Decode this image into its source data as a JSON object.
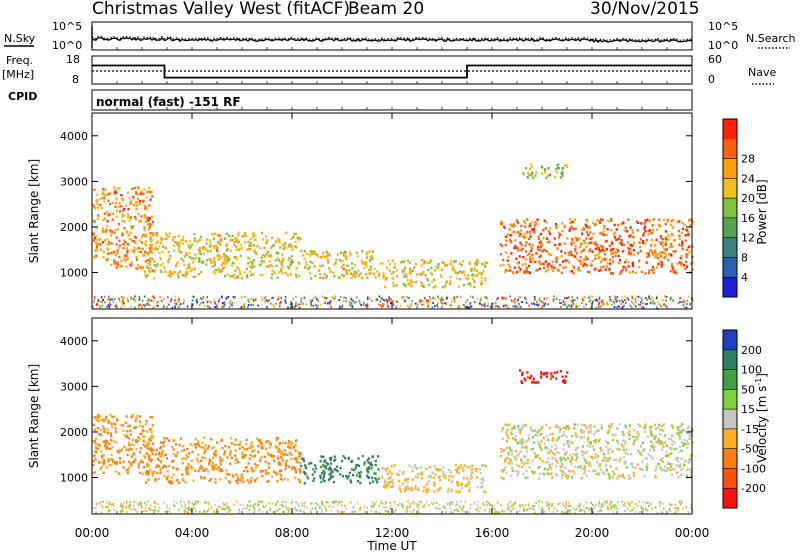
{
  "header": {
    "title": "Christmas Valley West (fitACF)",
    "beam": "Beam 20",
    "date": "30/Nov/2015"
  },
  "status_panels": {
    "nsky_label": "N.Sky",
    "nsearch_label": "N.Search",
    "freq_label": "Freq.",
    "freq_unit": "[MHz]",
    "nave_label": "Nave",
    "cpid_label": "CPID",
    "cpid_text": "normal (fast) -151 RF",
    "noise_ticks": [
      "10^5",
      "10^0"
    ],
    "freq_ticks": [
      "18",
      "8"
    ],
    "nave_ticks": [
      "60",
      "0"
    ]
  },
  "axes": {
    "xlabel": "Time UT",
    "x_ticks": [
      "00:00",
      "04:00",
      "08:00",
      "12:00",
      "16:00",
      "20:00",
      "00:00"
    ],
    "ylabel": "Slant Range [km]",
    "y_ticks": [
      "1000",
      "2000",
      "3000",
      "4000"
    ]
  },
  "power_scale": {
    "label": "Power [dB]",
    "ticks": [
      "4",
      "8",
      "12",
      "16",
      "20",
      "24",
      "28"
    ],
    "colors": [
      "#1f1fd8",
      "#2f5fb0",
      "#3f8080",
      "#5aa055",
      "#80c040",
      "#f0c020",
      "#ff9f10",
      "#ff6010",
      "#ff2010"
    ]
  },
  "velocity_scale": {
    "label": "Velocity [m s",
    "label_sup": "-1",
    "label_end": "]",
    "ticks": [
      "200",
      "100",
      "50",
      "15",
      "-15",
      "-50",
      "-100",
      "-200"
    ],
    "colors": [
      "#2040c0",
      "#2f8060",
      "#40a040",
      "#80d040",
      "#c8c8c0",
      "#ffb020",
      "#ff8010",
      "#ff5010",
      "#ff1010"
    ]
  },
  "chart_data": [
    {
      "type": "line",
      "title": "N.Sky",
      "ylabel": "N.Sky",
      "yscale": "log",
      "ylim": [
        1,
        100000
      ],
      "xlim_hours": [
        0,
        24
      ],
      "description_values": {
        "noise_level_approx": 100
      }
    },
    {
      "type": "line",
      "ylabel": "Freq. [MHz]",
      "ylim": [
        8,
        18
      ],
      "x": [
        0,
        2.9,
        2.9,
        15.0,
        15.0,
        24
      ],
      "series": [
        {
          "values": [
            14.6,
            14.6,
            10.3,
            10.3,
            14.6,
            14.6
          ]
        }
      ]
    },
    {
      "type": "heatmap",
      "ylabel": "Slant Range [km]",
      "xlabel": "Time UT",
      "ylim": [
        200,
        4500
      ],
      "xlim_hours": [
        0,
        24
      ],
      "zlabel": "Power [dB]",
      "zlim": [
        0,
        32
      ],
      "regions": [
        {
          "start_hr": 0.0,
          "end_hr": 2.4,
          "range_min_km": 1100,
          "range_max_km": 2900,
          "power_db": 24
        },
        {
          "start_hr": 2.0,
          "end_hr": 8.3,
          "range_min_km": 900,
          "range_max_km": 1900,
          "power_db": 20
        },
        {
          "start_hr": 8.3,
          "end_hr": 11.5,
          "range_min_km": 900,
          "range_max_km": 1500,
          "power_db": 20
        },
        {
          "start_hr": 11.5,
          "end_hr": 15.8,
          "range_min_km": 700,
          "range_max_km": 1300,
          "power_db": 20
        },
        {
          "start_hr": 16.3,
          "end_hr": 24.0,
          "range_min_km": 1000,
          "range_max_km": 2200,
          "power_db": 26
        },
        {
          "start_hr": 17.0,
          "end_hr": 19.0,
          "range_min_km": 3100,
          "range_max_km": 3400,
          "power_db": 16
        }
      ]
    },
    {
      "type": "heatmap",
      "ylabel": "Slant Range [km]",
      "xlabel": "Time UT",
      "ylim": [
        200,
        4500
      ],
      "xlim_hours": [
        0,
        24
      ],
      "zlabel": "Velocity [m s-1]",
      "zlim": [
        -250,
        250
      ],
      "regions": [
        {
          "start_hr": 0.0,
          "end_hr": 2.4,
          "range_min_km": 1100,
          "range_max_km": 2400,
          "velocity": -60
        },
        {
          "start_hr": 2.0,
          "end_hr": 8.3,
          "range_min_km": 900,
          "range_max_km": 1900,
          "velocity": -60
        },
        {
          "start_hr": 8.3,
          "end_hr": 11.5,
          "range_min_km": 900,
          "range_max_km": 1500,
          "velocity": 120
        },
        {
          "start_hr": 11.5,
          "end_hr": 15.8,
          "range_min_km": 700,
          "range_max_km": 1300,
          "velocity": -20
        },
        {
          "start_hr": 16.3,
          "end_hr": 24.0,
          "range_min_km": 1000,
          "range_max_km": 2200,
          "velocity": 0
        },
        {
          "start_hr": 17.0,
          "end_hr": 19.0,
          "range_min_km": 3100,
          "range_max_km": 3400,
          "velocity": -220
        }
      ]
    }
  ]
}
